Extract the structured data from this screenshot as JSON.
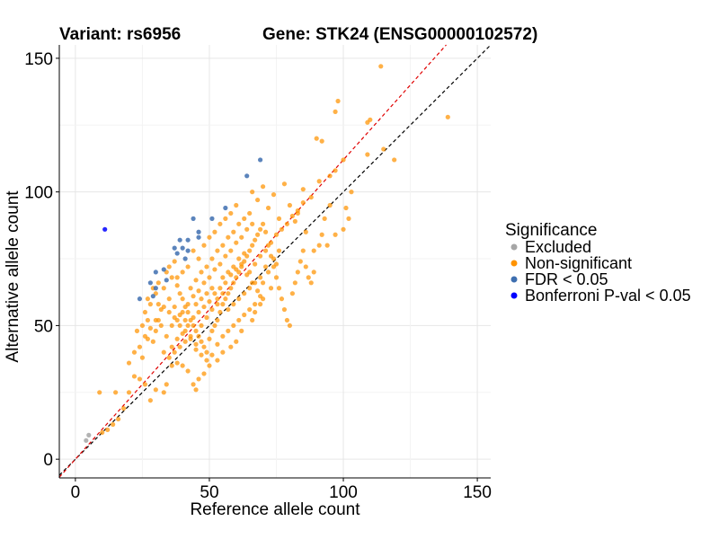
{
  "chart_data": {
    "type": "scatter",
    "title_variant": "Variant: rs6956",
    "title_gene": "Gene: STK24 (ENSG00000102572)",
    "xlabel": "Reference allele count",
    "ylabel": "Alternative allele count",
    "xlim": [
      -6,
      155
    ],
    "ylim": [
      -7,
      155
    ],
    "x_ticks": [
      0,
      50,
      100,
      150
    ],
    "y_ticks": [
      0,
      50,
      100,
      150
    ],
    "grid": true,
    "legend": {
      "title": "Significance",
      "position": "right",
      "items": [
        {
          "name": "Excluded",
          "color": "#a6a6a6"
        },
        {
          "name": "Non-significant",
          "color": "#ff9300"
        },
        {
          "name": "FDR < 0.05",
          "color": "#3e6fb0"
        },
        {
          "name": "Bonferroni P-val < 0.05",
          "color": "#0000ff"
        }
      ]
    },
    "reference_lines": [
      {
        "name": "identity",
        "slope": 1.0,
        "intercept": 0,
        "color": "#000000",
        "dash": true
      },
      {
        "name": "fit",
        "slope": 1.12,
        "intercept": 0,
        "color": "#e00000",
        "dash": true
      }
    ],
    "series": [
      {
        "name": "Excluded",
        "color": "#a6a6a6",
        "points": [
          [
            5,
            9
          ],
          [
            4,
            7
          ]
        ]
      },
      {
        "name": "Non-significant",
        "color": "#ff9300",
        "points": [
          [
            114,
            147
          ],
          [
            139,
            128
          ],
          [
            98,
            134
          ],
          [
            97,
            130
          ],
          [
            110,
            127
          ],
          [
            109,
            126
          ],
          [
            119,
            112
          ],
          [
            115,
            116
          ],
          [
            109,
            114
          ],
          [
            90,
            120
          ],
          [
            92,
            119
          ],
          [
            100,
            112
          ],
          [
            97,
            108
          ],
          [
            103,
            100
          ],
          [
            95,
            106
          ],
          [
            91,
            104
          ],
          [
            85,
            101
          ],
          [
            88,
            98
          ],
          [
            78,
            103
          ],
          [
            93,
            90
          ],
          [
            92,
            84
          ],
          [
            91,
            80
          ],
          [
            86,
            85
          ],
          [
            89,
            78
          ],
          [
            94,
            80
          ],
          [
            97,
            84
          ],
          [
            100,
            86
          ],
          [
            102,
            90
          ],
          [
            95,
            95
          ],
          [
            101,
            94
          ],
          [
            83,
            92
          ],
          [
            80,
            95
          ],
          [
            82,
            89
          ],
          [
            76,
            90
          ],
          [
            72,
            94
          ],
          [
            68,
            97
          ],
          [
            66,
            100
          ],
          [
            70,
            102
          ],
          [
            74,
            99
          ],
          [
            76,
            78
          ],
          [
            75,
            73
          ],
          [
            73,
            64
          ],
          [
            70,
            60
          ],
          [
            69,
            58
          ],
          [
            67,
            55
          ],
          [
            66,
            52
          ],
          [
            62,
            48
          ],
          [
            60,
            44
          ],
          [
            58,
            42
          ],
          [
            55,
            40
          ],
          [
            53,
            37
          ],
          [
            50,
            35
          ],
          [
            48,
            32
          ],
          [
            46,
            30
          ],
          [
            45,
            26
          ],
          [
            44,
            28
          ],
          [
            42,
            33
          ],
          [
            40,
            35
          ],
          [
            38,
            36
          ],
          [
            36,
            35
          ],
          [
            34,
            28
          ],
          [
            33,
            25
          ],
          [
            30,
            26
          ],
          [
            28,
            22
          ],
          [
            26,
            28
          ],
          [
            24,
            30
          ],
          [
            22,
            31
          ],
          [
            20,
            25
          ],
          [
            18,
            19
          ],
          [
            16,
            15
          ],
          [
            14,
            13
          ],
          [
            12,
            11
          ],
          [
            10,
            10
          ],
          [
            9,
            25
          ],
          [
            15,
            25
          ],
          [
            20,
            36
          ],
          [
            22,
            40
          ],
          [
            25,
            38
          ],
          [
            27,
            45
          ],
          [
            29,
            44
          ],
          [
            30,
            48
          ],
          [
            31,
            52
          ],
          [
            32,
            50
          ],
          [
            26,
            55
          ],
          [
            27,
            52
          ],
          [
            28,
            58
          ],
          [
            30,
            62
          ],
          [
            31,
            66
          ],
          [
            33,
            64
          ],
          [
            34,
            70
          ],
          [
            35,
            72
          ],
          [
            36,
            68
          ],
          [
            37,
            74
          ],
          [
            38,
            65
          ],
          [
            39,
            62
          ],
          [
            40,
            60
          ],
          [
            41,
            57
          ],
          [
            42,
            55
          ],
          [
            43,
            52
          ],
          [
            44,
            50
          ],
          [
            45,
            48
          ],
          [
            46,
            46
          ],
          [
            47,
            44
          ],
          [
            48,
            42
          ],
          [
            49,
            40
          ],
          [
            50,
            45
          ],
          [
            51,
            48
          ],
          [
            52,
            50
          ],
          [
            53,
            52
          ],
          [
            54,
            55
          ],
          [
            55,
            58
          ],
          [
            56,
            60
          ],
          [
            57,
            62
          ],
          [
            58,
            64
          ],
          [
            59,
            66
          ],
          [
            60,
            68
          ],
          [
            61,
            70
          ],
          [
            62,
            72
          ],
          [
            63,
            74
          ],
          [
            64,
            76
          ],
          [
            65,
            78
          ],
          [
            66,
            80
          ],
          [
            67,
            82
          ],
          [
            68,
            84
          ],
          [
            69,
            86
          ],
          [
            70,
            88
          ],
          [
            71,
            85
          ],
          [
            72,
            80
          ],
          [
            73,
            76
          ],
          [
            74,
            72
          ],
          [
            75,
            68
          ],
          [
            76,
            64
          ],
          [
            77,
            60
          ],
          [
            78,
            56
          ],
          [
            79,
            52
          ],
          [
            80,
            50
          ],
          [
            81,
            62
          ],
          [
            82,
            66
          ],
          [
            83,
            70
          ],
          [
            84,
            74
          ],
          [
            85,
            78
          ],
          [
            86,
            72
          ],
          [
            87,
            68
          ],
          [
            88,
            66
          ],
          [
            89,
            70
          ],
          [
            34,
            46
          ],
          [
            36,
            50
          ],
          [
            38,
            52
          ],
          [
            40,
            55
          ],
          [
            42,
            58
          ],
          [
            44,
            61
          ],
          [
            46,
            63
          ],
          [
            48,
            66
          ],
          [
            50,
            68
          ],
          [
            52,
            71
          ],
          [
            54,
            73
          ],
          [
            56,
            76
          ],
          [
            58,
            78
          ],
          [
            60,
            81
          ],
          [
            62,
            83
          ],
          [
            64,
            86
          ],
          [
            66,
            88
          ],
          [
            36,
            42
          ],
          [
            38,
            45
          ],
          [
            40,
            47
          ],
          [
            42,
            50
          ],
          [
            44,
            53
          ],
          [
            46,
            55
          ],
          [
            48,
            57
          ],
          [
            50,
            59
          ],
          [
            52,
            62
          ],
          [
            54,
            64
          ],
          [
            56,
            66
          ],
          [
            58,
            69
          ],
          [
            60,
            71
          ],
          [
            62,
            73
          ],
          [
            64,
            69
          ],
          [
            66,
            66
          ],
          [
            68,
            63
          ],
          [
            70,
            66
          ],
          [
            72,
            70
          ],
          [
            74,
            75
          ],
          [
            35,
            60
          ],
          [
            37,
            57
          ],
          [
            39,
            54
          ],
          [
            41,
            52
          ],
          [
            43,
            64
          ],
          [
            45,
            67
          ],
          [
            47,
            70
          ],
          [
            49,
            72
          ],
          [
            51,
            75
          ],
          [
            53,
            78
          ],
          [
            55,
            80
          ],
          [
            57,
            83
          ],
          [
            59,
            85
          ],
          [
            61,
            88
          ],
          [
            63,
            90
          ],
          [
            65,
            92
          ],
          [
            44,
            78
          ],
          [
            46,
            75
          ],
          [
            48,
            80
          ],
          [
            50,
            83
          ],
          [
            52,
            85
          ],
          [
            54,
            88
          ],
          [
            56,
            90
          ],
          [
            58,
            92
          ],
          [
            60,
            95
          ],
          [
            42,
            72
          ],
          [
            40,
            70
          ],
          [
            38,
            68
          ],
          [
            45,
            58
          ],
          [
            47,
            60
          ],
          [
            49,
            62
          ],
          [
            51,
            64
          ],
          [
            53,
            60
          ],
          [
            55,
            62
          ],
          [
            57,
            56
          ],
          [
            59,
            58
          ],
          [
            61,
            60
          ],
          [
            63,
            62
          ],
          [
            65,
            64
          ],
          [
            67,
            66
          ],
          [
            69,
            68
          ],
          [
            71,
            72
          ],
          [
            33,
            40
          ],
          [
            35,
            38
          ],
          [
            37,
            40
          ],
          [
            39,
            42
          ],
          [
            41,
            44
          ],
          [
            43,
            46
          ],
          [
            45,
            41
          ],
          [
            47,
            39
          ],
          [
            49,
            37
          ],
          [
            51,
            39
          ],
          [
            53,
            43
          ],
          [
            55,
            46
          ],
          [
            57,
            48
          ],
          [
            59,
            50
          ],
          [
            61,
            52
          ],
          [
            63,
            54
          ],
          [
            65,
            56
          ],
          [
            67,
            58
          ],
          [
            69,
            61
          ],
          [
            24,
            42
          ],
          [
            26,
            46
          ],
          [
            28,
            49
          ],
          [
            30,
            52
          ],
          [
            32,
            56
          ],
          [
            23,
            48
          ],
          [
            25,
            50
          ],
          [
            27,
            60
          ],
          [
            29,
            64
          ],
          [
            31,
            58
          ],
          [
            33,
            57
          ],
          [
            35,
            55
          ],
          [
            37,
            53
          ],
          [
            39,
            50
          ],
          [
            41,
            48
          ],
          [
            43,
            45
          ],
          [
            45,
            43
          ],
          [
            47,
            50
          ],
          [
            49,
            53
          ],
          [
            51,
            56
          ],
          [
            53,
            58
          ],
          [
            55,
            68
          ],
          [
            57,
            70
          ],
          [
            59,
            72
          ],
          [
            61,
            75
          ],
          [
            63,
            77
          ],
          [
            65,
            70
          ],
          [
            67,
            73
          ],
          [
            69,
            76
          ],
          [
            71,
            78
          ],
          [
            73,
            81
          ],
          [
            75,
            84
          ],
          [
            77,
            86
          ],
          [
            79,
            88
          ],
          [
            81,
            91
          ],
          [
            83,
            93
          ],
          [
            85,
            96
          ]
        ]
      },
      {
        "name": "FDR < 0.05",
        "color": "#3e6fb0",
        "points": [
          [
            69,
            112
          ],
          [
            64,
            106
          ],
          [
            56,
            94
          ],
          [
            44,
            90
          ],
          [
            51,
            90
          ],
          [
            46,
            85
          ],
          [
            46,
            83
          ],
          [
            39,
            82
          ],
          [
            42,
            82
          ],
          [
            37,
            79
          ],
          [
            40,
            79
          ],
          [
            42,
            78
          ],
          [
            38,
            77
          ],
          [
            41,
            75
          ],
          [
            33,
            71
          ],
          [
            30,
            70
          ],
          [
            34,
            67
          ],
          [
            28,
            66
          ],
          [
            30,
            64
          ],
          [
            24,
            60
          ],
          [
            29,
            61
          ]
        ]
      },
      {
        "name": "Bonferroni P-val < 0.05",
        "color": "#0000ff",
        "points": [
          [
            11,
            86
          ]
        ]
      }
    ]
  }
}
